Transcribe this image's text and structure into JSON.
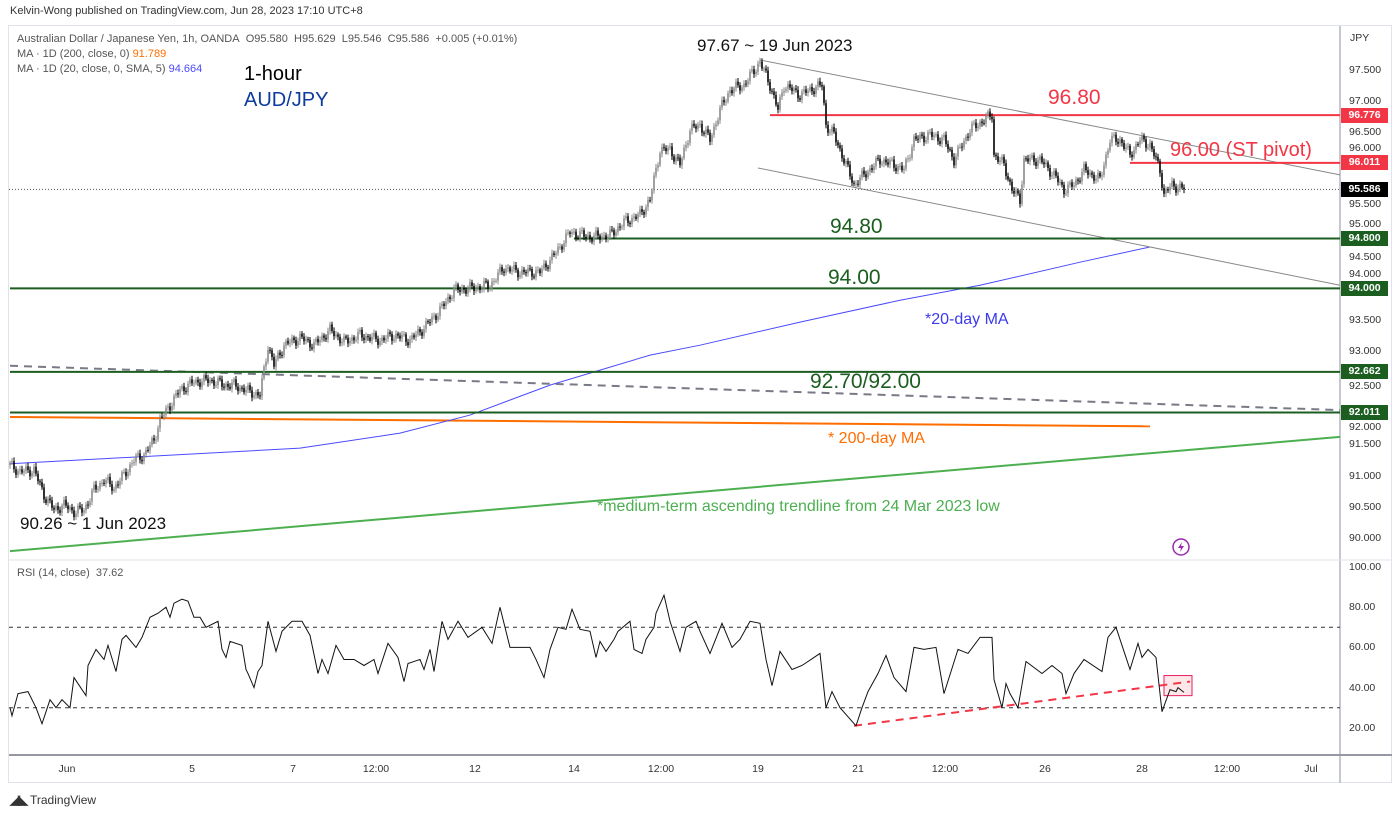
{
  "header": {
    "publisher": "Kelvin-Wong published on TradingView.com, Jun 28, 2023 17:10 UTC+8",
    "symbol_line": "Australian Dollar / Japanese Yen, 1h, OANDA",
    "open": "O95.580",
    "high": "H95.629",
    "low": "L95.546",
    "close": "C95.586",
    "change": "+0.005 (+0.01%)",
    "ma200_label": "MA · 1D (200, close, 0)",
    "ma200_value": "91.789",
    "ma20_label": "MA · 1D (20, close, 0, SMA, 5)",
    "ma20_value": "94.664",
    "timeframe_title": "1-hour",
    "pair_title": "AUD/JPY"
  },
  "rsi_legend": {
    "label": "RSI (14, close)",
    "value": "37.62"
  },
  "annotations": {
    "high": "97.67 ~ 19 Jun 2023",
    "low": "90.26 ~ 1 Jun 2023",
    "r1": "96.80",
    "pivot": "96.00 (ST pivot)",
    "s1": "94.80",
    "s2": "94.00",
    "ma20": "*20-day MA",
    "s3": "92.70/92.00",
    "ma200": "* 200-day MA",
    "trendline": "*medium-term ascending trendline from 24 Mar 2023 low"
  },
  "price_axis": {
    "currency": "JPY",
    "ticks": [
      "97.500",
      "97.000",
      "96.500",
      "96.000",
      "95.500",
      "95.000",
      "94.500",
      "94.000",
      "93.500",
      "93.000",
      "92.500",
      "92.000",
      "91.500",
      "91.000",
      "90.500",
      "90.000"
    ],
    "badges": {
      "r1": "96.776",
      "pivot": "96.011",
      "last": "95.586",
      "s1": "94.800",
      "s2": "94.000",
      "s3a": "92.662",
      "s3b": "92.011"
    }
  },
  "rsi_axis": {
    "ticks": [
      "100.00",
      "80.00",
      "60.00",
      "40.00",
      "20.00"
    ]
  },
  "time_axis": {
    "labels": [
      "Jun",
      "5",
      "7",
      "12:00",
      "12",
      "14",
      "12:00",
      "19",
      "21",
      "12:00",
      "26",
      "28",
      "12:00",
      "Jul"
    ]
  },
  "footer": {
    "brand": "TradingView"
  },
  "colors": {
    "resistance": "#f23645",
    "support": "#1b5e20",
    "ma20": "#4a4aff",
    "ma200": "#ff6d00",
    "trend": "#4caf50",
    "channel": "#888888",
    "rsi_trend": "#f23645"
  },
  "chart_data": [
    {
      "type": "candlestick",
      "title": "Australian Dollar / Japanese Yen, 1h, OANDA",
      "ylabel": "JPY",
      "ylim": [
        89.8,
        97.9
      ],
      "x_unit": "hourly bar index",
      "close_path": [
        [
          0,
          91.17
        ],
        [
          5,
          91.06
        ],
        [
          12,
          91.09
        ],
        [
          17,
          90.69
        ],
        [
          22,
          90.45
        ],
        [
          27,
          90.53
        ],
        [
          32,
          90.42
        ],
        [
          37,
          90.45
        ],
        [
          42,
          90.77
        ],
        [
          47,
          90.93
        ],
        [
          52,
          90.8
        ],
        [
          57,
          91.01
        ],
        [
          62,
          91.25
        ],
        [
          67,
          91.33
        ],
        [
          72,
          91.57
        ],
        [
          75,
          91.89
        ],
        [
          80,
          92.13
        ],
        [
          85,
          92.37
        ],
        [
          92,
          92.5
        ],
        [
          100,
          92.53
        ],
        [
          107,
          92.45
        ],
        [
          112,
          92.45
        ],
        [
          120,
          92.34
        ],
        [
          125,
          92.29
        ],
        [
          129,
          93.09
        ],
        [
          132,
          92.77
        ],
        [
          137,
          93.09
        ],
        [
          145,
          93.21
        ],
        [
          152,
          93.09
        ],
        [
          160,
          93.33
        ],
        [
          167,
          93.14
        ],
        [
          175,
          93.25
        ],
        [
          185,
          93.17
        ],
        [
          192,
          93.25
        ],
        [
          200,
          93.17
        ],
        [
          207,
          93.37
        ],
        [
          215,
          93.65
        ],
        [
          222,
          93.97
        ],
        [
          230,
          94.0
        ],
        [
          240,
          94.05
        ],
        [
          247,
          94.33
        ],
        [
          255,
          94.26
        ],
        [
          265,
          94.26
        ],
        [
          272,
          94.53
        ],
        [
          280,
          94.9
        ],
        [
          290,
          94.82
        ],
        [
          300,
          94.85
        ],
        [
          307,
          95.06
        ],
        [
          315,
          95.18
        ],
        [
          320,
          95.42
        ],
        [
          325,
          96.22
        ],
        [
          330,
          96.22
        ],
        [
          335,
          95.98
        ],
        [
          340,
          96.54
        ],
        [
          345,
          96.62
        ],
        [
          350,
          96.38
        ],
        [
          355,
          96.86
        ],
        [
          360,
          97.18
        ],
        [
          367,
          97.26
        ],
        [
          375,
          97.63
        ],
        [
          380,
          97.26
        ],
        [
          384,
          96.86
        ],
        [
          387,
          97.26
        ],
        [
          395,
          97.1
        ],
        [
          402,
          97.21
        ],
        [
          406,
          97.26
        ],
        [
          408,
          96.62
        ],
        [
          412,
          96.46
        ],
        [
          417,
          96.06
        ],
        [
          422,
          95.66
        ],
        [
          427,
          95.82
        ],
        [
          435,
          96.06
        ],
        [
          442,
          95.98
        ],
        [
          447,
          95.9
        ],
        [
          452,
          96.38
        ],
        [
          460,
          96.46
        ],
        [
          467,
          96.38
        ],
        [
          472,
          96.06
        ],
        [
          480,
          96.54
        ],
        [
          487,
          96.7
        ],
        [
          491,
          96.78
        ],
        [
          492,
          96.14
        ],
        [
          497,
          95.98
        ],
        [
          501,
          95.58
        ],
        [
          505,
          95.42
        ],
        [
          507,
          96.06
        ],
        [
          515,
          96.06
        ],
        [
          522,
          95.82
        ],
        [
          527,
          95.58
        ],
        [
          532,
          95.66
        ],
        [
          537,
          95.9
        ],
        [
          545,
          95.74
        ],
        [
          550,
          96.38
        ],
        [
          555,
          96.38
        ],
        [
          560,
          96.14
        ],
        [
          565,
          96.38
        ],
        [
          570,
          96.3
        ],
        [
          575,
          95.9
        ],
        [
          577,
          95.5
        ],
        [
          581,
          95.66
        ],
        [
          585,
          95.61
        ],
        [
          587,
          95.586
        ]
      ],
      "overlays": {
        "ma200_daily": [
          [
            0,
            91.94
          ],
          [
            570,
            91.79
          ]
        ],
        "ma20_daily": [
          [
            0,
            91.19
          ],
          [
            70,
            91.31
          ],
          [
            145,
            91.44
          ],
          [
            195,
            91.68
          ],
          [
            230,
            91.97
          ],
          [
            270,
            92.45
          ],
          [
            295,
            92.69
          ],
          [
            320,
            92.93
          ],
          [
            345,
            93.09
          ],
          [
            395,
            93.46
          ],
          [
            445,
            93.81
          ],
          [
            485,
            94.05
          ],
          [
            535,
            94.42
          ],
          [
            570,
            94.664
          ]
        ],
        "ascending_trendline": [
          [
            0,
            89.79
          ],
          [
            665,
            91.62
          ]
        ],
        "dashed_trendline": [
          [
            0,
            92.76
          ],
          [
            665,
            92.05
          ]
        ],
        "channel_upper": [
          [
            375,
            97.66
          ],
          [
            665,
            95.82
          ]
        ],
        "channel_lower": [
          [
            374,
            95.93
          ],
          [
            665,
            94.05
          ]
        ]
      },
      "levels": [
        {
          "price": 96.776,
          "from": 380,
          "color_key": "resistance"
        },
        {
          "price": 96.011,
          "from": 560,
          "color_key": "resistance"
        },
        {
          "price": 94.8,
          "from": 282,
          "color_key": "support"
        },
        {
          "price": 94.0,
          "from": 0,
          "color_key": "support"
        },
        {
          "price": 92.662,
          "from": 0,
          "color_key": "support"
        },
        {
          "price": 92.011,
          "from": 0,
          "color_key": "support"
        }
      ],
      "last_price": 95.586
    },
    {
      "type": "line",
      "title": "RSI (14, close)",
      "ylim": [
        0,
        110
      ],
      "bands": [
        70,
        30
      ],
      "values": [
        [
          0,
          30
        ],
        [
          1,
          26
        ],
        [
          4,
          37
        ],
        [
          9,
          38
        ],
        [
          13,
          30
        ],
        [
          16,
          22
        ],
        [
          20,
          34
        ],
        [
          23,
          30
        ],
        [
          26,
          34
        ],
        [
          30,
          30
        ],
        [
          32,
          45
        ],
        [
          38,
          36
        ],
        [
          39,
          51
        ],
        [
          43,
          59
        ],
        [
          47,
          54
        ],
        [
          49,
          61
        ],
        [
          53,
          48
        ],
        [
          56,
          64
        ],
        [
          58,
          66
        ],
        [
          63,
          60
        ],
        [
          66,
          65
        ],
        [
          70,
          75
        ],
        [
          74,
          77
        ],
        [
          78,
          80
        ],
        [
          80,
          75
        ],
        [
          82,
          82
        ],
        [
          86,
          84
        ],
        [
          89,
          83
        ],
        [
          92,
          75
        ],
        [
          95,
          75
        ],
        [
          98,
          70
        ],
        [
          104,
          73
        ],
        [
          106,
          59
        ],
        [
          108,
          55
        ],
        [
          110,
          63
        ],
        [
          116,
          61
        ],
        [
          118,
          49
        ],
        [
          119,
          47
        ],
        [
          122,
          40
        ],
        [
          124,
          48
        ],
        [
          126,
          51
        ],
        [
          129,
          73
        ],
        [
          133,
          58
        ],
        [
          136,
          68
        ],
        [
          141,
          73
        ],
        [
          146,
          73
        ],
        [
          150,
          66
        ],
        [
          154,
          47
        ],
        [
          156,
          54
        ],
        [
          159,
          47
        ],
        [
          163,
          61
        ],
        [
          167,
          54
        ],
        [
          172,
          54
        ],
        [
          177,
          51
        ],
        [
          182,
          54
        ],
        [
          184,
          47
        ],
        [
          189,
          62
        ],
        [
          194,
          55
        ],
        [
          197,
          43
        ],
        [
          199,
          52
        ],
        [
          205,
          54
        ],
        [
          207,
          49
        ],
        [
          210,
          59
        ],
        [
          212,
          48
        ],
        [
          216,
          73
        ],
        [
          219,
          64
        ],
        [
          224,
          73
        ],
        [
          229,
          65
        ],
        [
          236,
          70
        ],
        [
          241,
          62
        ],
        [
          245,
          80
        ],
        [
          250,
          60
        ],
        [
          260,
          60
        ],
        [
          263,
          54
        ],
        [
          267,
          45
        ],
        [
          270,
          59
        ],
        [
          274,
          70
        ],
        [
          278,
          69
        ],
        [
          281,
          79
        ],
        [
          285,
          69
        ],
        [
          290,
          68
        ],
        [
          293,
          55
        ],
        [
          295,
          63
        ],
        [
          298,
          58
        ],
        [
          302,
          64
        ],
        [
          304,
          68
        ],
        [
          310,
          73
        ],
        [
          312,
          59
        ],
        [
          316,
          57
        ],
        [
          318,
          64
        ],
        [
          322,
          70
        ],
        [
          323,
          77
        ],
        [
          327,
          86
        ],
        [
          330,
          73
        ],
        [
          335,
          58
        ],
        [
          338,
          70
        ],
        [
          343,
          73
        ],
        [
          345,
          68
        ],
        [
          350,
          57
        ],
        [
          356,
          72
        ],
        [
          361,
          60
        ],
        [
          365,
          64
        ],
        [
          370,
          73
        ],
        [
          375,
          72
        ],
        [
          378,
          54
        ],
        [
          381,
          41
        ],
        [
          385,
          58
        ],
        [
          391,
          49
        ],
        [
          396,
          51
        ],
        [
          402,
          55
        ],
        [
          405,
          57
        ],
        [
          408,
          30
        ],
        [
          411,
          38
        ],
        [
          415,
          30
        ],
        [
          423,
          21
        ],
        [
          426,
          30
        ],
        [
          429,
          38
        ],
        [
          434,
          47
        ],
        [
          438,
          56
        ],
        [
          442,
          45
        ],
        [
          448,
          38
        ],
        [
          452,
          60
        ],
        [
          457,
          59
        ],
        [
          463,
          60
        ],
        [
          467,
          37
        ],
        [
          474,
          59
        ],
        [
          479,
          57
        ],
        [
          485,
          65
        ],
        [
          491,
          65
        ],
        [
          492,
          44
        ],
        [
          496,
          30
        ],
        [
          498,
          42
        ],
        [
          500,
          37
        ],
        [
          504,
          30
        ],
        [
          508,
          53
        ],
        [
          516,
          47
        ],
        [
          521,
          51
        ],
        [
          526,
          47
        ],
        [
          528,
          37
        ],
        [
          532,
          47
        ],
        [
          537,
          54
        ],
        [
          546,
          48
        ],
        [
          549,
          65
        ],
        [
          553,
          70
        ],
        [
          557,
          58
        ],
        [
          560,
          49
        ],
        [
          564,
          62
        ],
        [
          566,
          55
        ],
        [
          569,
          59
        ],
        [
          573,
          55
        ],
        [
          576,
          28
        ],
        [
          580,
          39
        ],
        [
          583,
          38
        ],
        [
          584,
          40
        ],
        [
          587,
          37.62
        ]
      ],
      "trendline": [
        [
          422,
          21
        ],
        [
          590,
          43
        ]
      ],
      "highlight_box": {
        "bars": [
          577,
          591
        ],
        "rsi": [
          36,
          46
        ]
      }
    }
  ]
}
